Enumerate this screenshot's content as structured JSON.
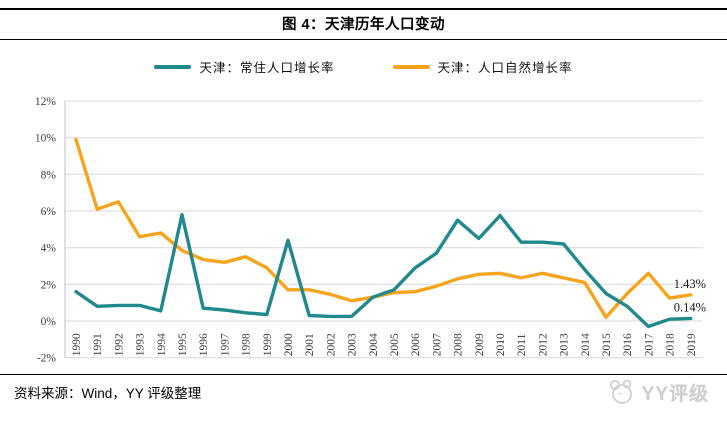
{
  "header": {
    "title": "图 4：天津历年人口变动"
  },
  "footer": {
    "source": "资料来源：Wind，YY 评级整理",
    "logo_text": "YY评级",
    "logo_icon": "mouse-face-icon"
  },
  "colors": {
    "series_resident": "#20898e",
    "series_natural": "#f7a41c",
    "gridline": "#d9d9d9",
    "axis": "#bfbfbf"
  },
  "chart_data": {
    "type": "line",
    "title": "图 4：天津历年人口变动",
    "xlabel": "",
    "ylabel": "",
    "ylim": [
      -2,
      12
    ],
    "ytick_step": 2,
    "ytick_labels": [
      "12%",
      "10%",
      "8%",
      "6%",
      "4%",
      "2%",
      "0%",
      "-2%"
    ],
    "grid": true,
    "legend_position": "top",
    "categories": [
      "1990",
      "1991",
      "1992",
      "1993",
      "1994",
      "1995",
      "1996",
      "1997",
      "1998",
      "1999",
      "2000",
      "2001",
      "2002",
      "2003",
      "2004",
      "2005",
      "2006",
      "2007",
      "2008",
      "2009",
      "2010",
      "2011",
      "2012",
      "2013",
      "2014",
      "2015",
      "2016",
      "2017",
      "2018",
      "2019"
    ],
    "series": [
      {
        "name": "天津：常住人口增长率",
        "color": "#20898e",
        "values": [
          1.6,
          0.8,
          0.85,
          0.85,
          0.55,
          5.8,
          0.7,
          0.6,
          0.45,
          0.35,
          4.4,
          0.3,
          0.25,
          0.25,
          1.3,
          1.7,
          2.9,
          3.7,
          5.5,
          4.5,
          5.75,
          4.3,
          4.3,
          4.2,
          2.8,
          1.5,
          0.8,
          -0.3,
          0.1,
          0.14
        ]
      },
      {
        "name": "天津：人口自然增长率",
        "color": "#f7a41c",
        "values": [
          9.9,
          6.1,
          6.5,
          4.6,
          4.8,
          3.85,
          3.35,
          3.2,
          3.5,
          2.9,
          1.7,
          1.7,
          1.45,
          1.1,
          1.3,
          1.55,
          1.6,
          1.9,
          2.3,
          2.55,
          2.6,
          2.35,
          2.6,
          2.35,
          2.1,
          0.2,
          1.5,
          2.6,
          1.25,
          1.43
        ]
      }
    ],
    "annotations": [
      {
        "series": 1,
        "text": "1.43%"
      },
      {
        "series": 0,
        "text": "0.14%"
      }
    ]
  }
}
